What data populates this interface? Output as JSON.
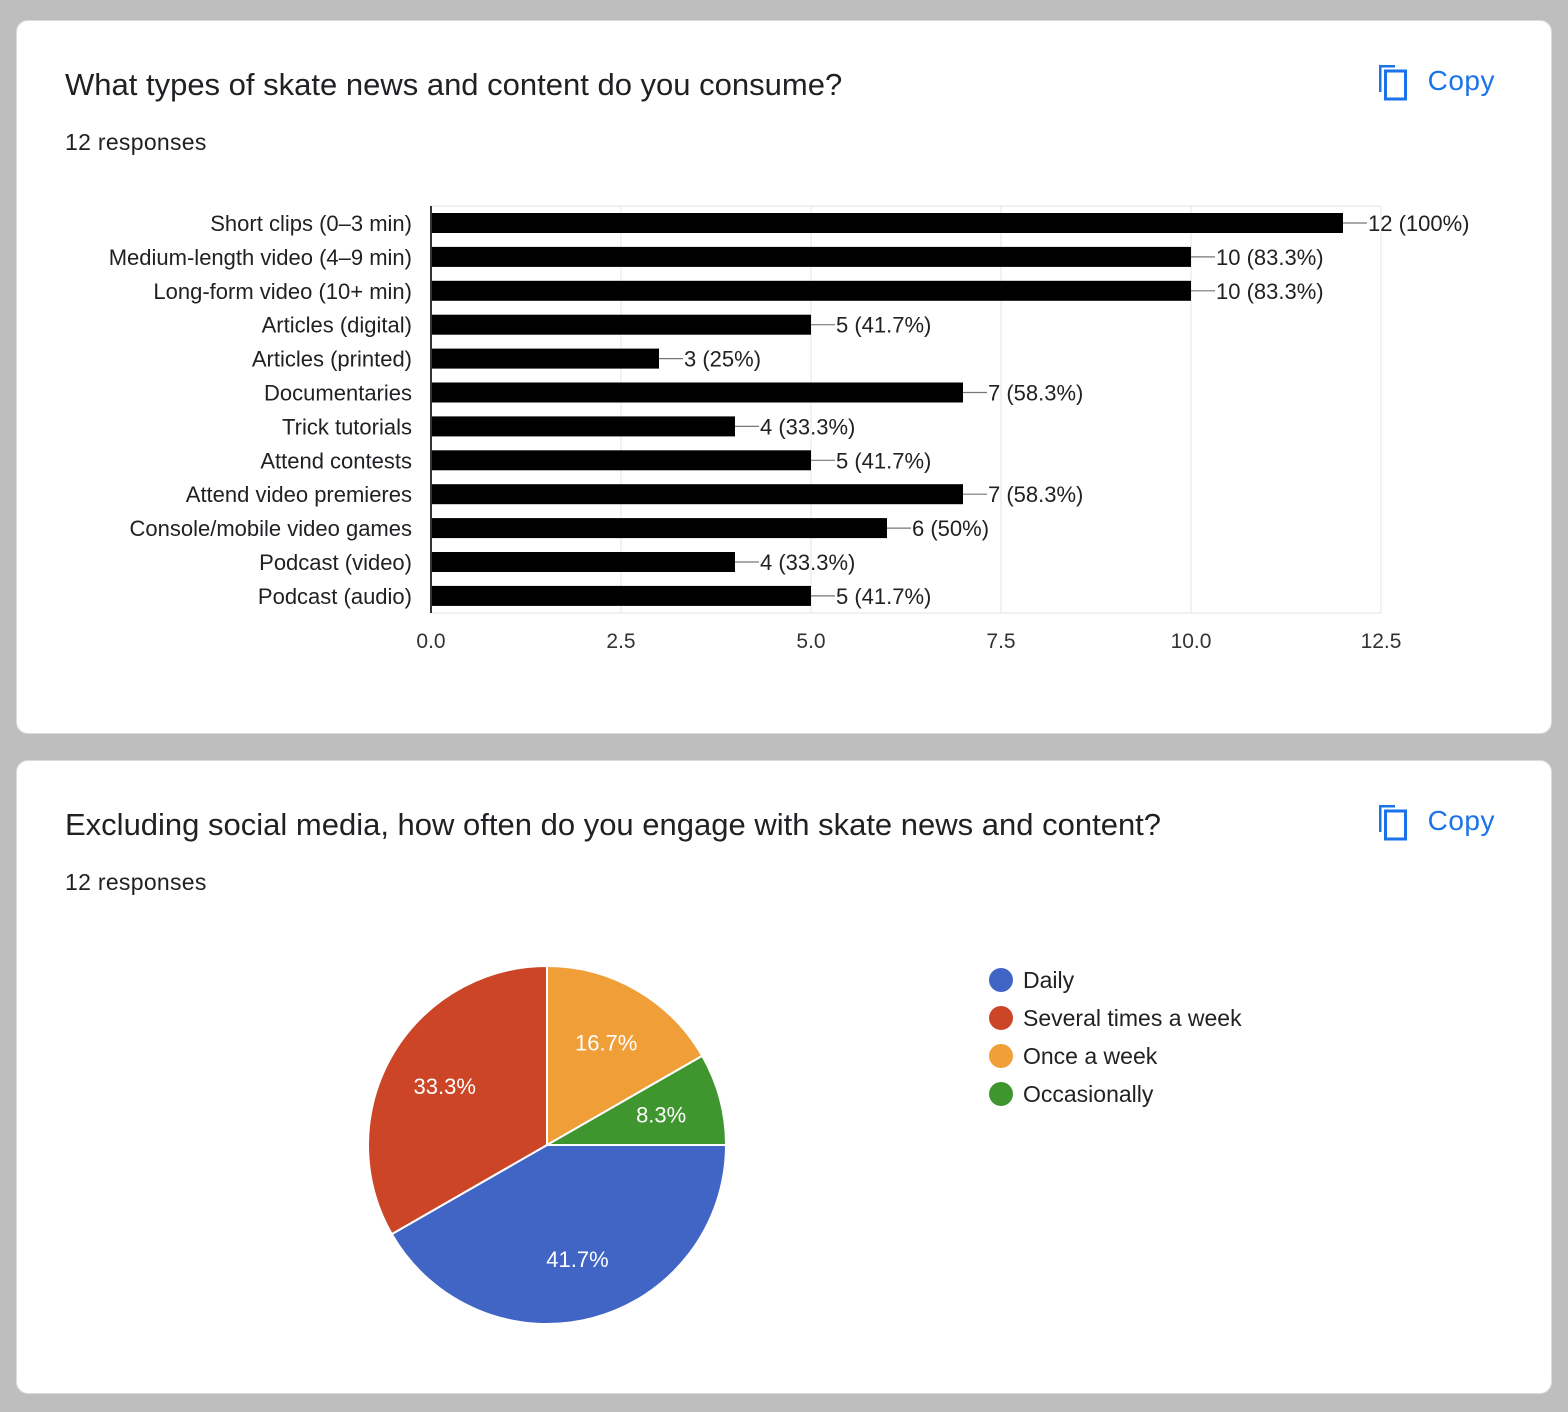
{
  "cards": [
    {
      "title": "What types of skate news and content do you consume?",
      "responses": "12 responses",
      "copy_label": "Copy"
    },
    {
      "title": "Excluding social media, how often do you engage with skate news and content?",
      "responses": "12 responses",
      "copy_label": "Copy"
    }
  ],
  "colors": {
    "copy_accent": "#1a73e8",
    "bar": "#000000"
  },
  "icons": [
    "copy-icon"
  ],
  "chart_data": [
    {
      "type": "bar",
      "orientation": "horizontal",
      "categories": [
        "Short clips (0–3 min)",
        "Medium-length video (4–9 min)",
        "Long-form video (10+ min)",
        "Articles (digital)",
        "Articles (printed)",
        "Documentaries",
        "Trick tutorials",
        "Attend contests",
        "Attend video premieres",
        "Console/mobile video games",
        "Podcast (video)",
        "Podcast (audio)"
      ],
      "values": [
        12,
        10,
        10,
        5,
        3,
        7,
        4,
        5,
        7,
        6,
        4,
        5
      ],
      "data_labels": [
        "12 (100%)",
        "10 (83.3%)",
        "10 (83.3%)",
        "5 (41.7%)",
        "3 (25%)",
        "7 (58.3%)",
        "4 (33.3%)",
        "5 (41.7%)",
        "7 (58.3%)",
        "6 (50%)",
        "4 (33.3%)",
        "5 (41.7%)"
      ],
      "xlim": [
        0,
        12.5
      ],
      "xticks": [
        0,
        2.5,
        5,
        7.5,
        10,
        12.5
      ],
      "xtick_labels": [
        "0.0",
        "2.5",
        "5.0",
        "7.5",
        "10.0",
        "12.5"
      ],
      "grid": true,
      "title": "",
      "xlabel": "",
      "ylabel": ""
    },
    {
      "type": "pie",
      "labels": [
        "Daily",
        "Several times a week",
        "Once a week",
        "Occasionally"
      ],
      "values": [
        41.7,
        33.3,
        16.7,
        8.3
      ],
      "data_labels": [
        "41.7%",
        "33.3%",
        "16.7%",
        "8.3%"
      ],
      "colors": [
        "#4165c4",
        "#cc4527",
        "#f09e38",
        "#3f962f"
      ],
      "legend_position": "right",
      "title": ""
    }
  ]
}
